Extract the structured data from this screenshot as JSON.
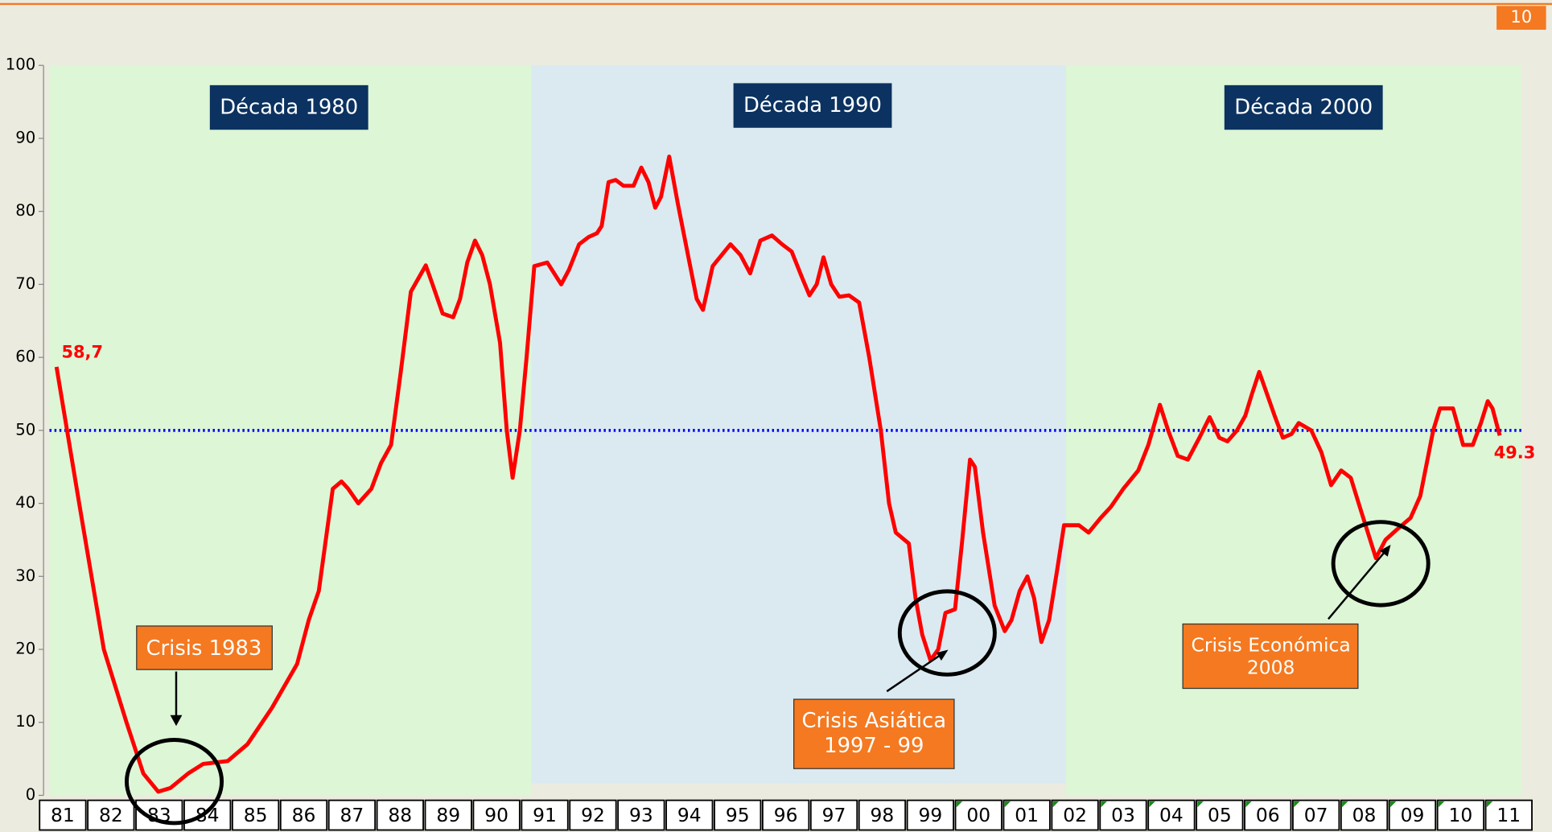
{
  "page_number": "10",
  "chart_data": {
    "type": "line",
    "ylim": [
      0,
      100
    ],
    "yticks": [
      0,
      10,
      20,
      30,
      40,
      50,
      60,
      70,
      80,
      90,
      100
    ],
    "xlim": [
      1981,
      2012
    ],
    "categories": [
      "81",
      "82",
      "83",
      "84",
      "85",
      "86",
      "87",
      "88",
      "89",
      "90",
      "91",
      "92",
      "93",
      "94",
      "95",
      "96",
      "97",
      "98",
      "99",
      "00",
      "01",
      "02",
      "03",
      "04",
      "05",
      "06",
      "07",
      "08",
      "09",
      "10",
      "11"
    ],
    "decades": [
      "Década 1980",
      "Década 1990",
      "Década 2000"
    ],
    "annotations": [
      "Crisis 1983",
      "Crisis Asiática\n1997 - 99",
      "Crisis Económica\n2008"
    ],
    "reference_line": {
      "value": 50,
      "color": "#0000ff"
    },
    "series": [
      {
        "color": "#ff0000",
        "x": [
          1981.27,
          1981.74,
          1982.25,
          1982.72,
          1983.07,
          1983.38,
          1983.63,
          1984.0,
          1984.31,
          1984.82,
          1985.23,
          1985.74,
          1986.26,
          1986.5,
          1986.71,
          1987.0,
          1987.18,
          1987.32,
          1987.53,
          1987.8,
          1988.0,
          1988.21,
          1988.41,
          1988.62,
          1988.93,
          1989.07,
          1989.28,
          1989.5,
          1989.64,
          1989.79,
          1989.95,
          1990.1,
          1990.26,
          1990.47,
          1990.61,
          1990.73,
          1990.88,
          1991.02,
          1991.18,
          1991.45,
          1991.74,
          1991.9,
          1992.11,
          1992.31,
          1992.48,
          1992.58,
          1992.72,
          1992.87,
          1993.03,
          1993.24,
          1993.4,
          1993.55,
          1993.69,
          1993.81,
          1993.98,
          1994.16,
          1994.37,
          1994.55,
          1994.68,
          1994.88,
          1995.25,
          1995.46,
          1995.66,
          1995.87,
          1996.11,
          1996.32,
          1996.52,
          1996.73,
          1996.89,
          1997.04,
          1997.18,
          1997.34,
          1997.51,
          1997.71,
          1997.92,
          1998.13,
          1998.37,
          1998.54,
          1998.68,
          1998.95,
          1999.09,
          1999.23,
          1999.4,
          1999.56,
          1999.71,
          1999.91,
          2000.06,
          2000.22,
          2000.32,
          2000.49,
          2000.73,
          2000.94,
          2001.08,
          2001.25,
          2001.41,
          2001.55,
          2001.7,
          2001.86,
          2002.03,
          2002.17,
          2002.48,
          2002.68,
          2002.93,
          2003.14,
          2003.4,
          2003.71,
          2003.92,
          2004.16,
          2004.33,
          2004.53,
          2004.74,
          2004.98,
          2005.19,
          2005.39,
          2005.56,
          2005.76,
          2005.93,
          2006.07,
          2006.22,
          2006.38,
          2006.54,
          2006.71,
          2006.89,
          2007.04,
          2007.3,
          2007.51,
          2007.71,
          2007.92,
          2008.12,
          2008.33,
          2008.64,
          2008.84,
          2009.09,
          2009.36,
          2009.56,
          2009.83,
          2009.97,
          2010.24,
          2010.45,
          2010.65,
          2010.82,
          2010.96,
          2011.06,
          2011.21
        ],
        "values": [
          58.7,
          40,
          20,
          10,
          3,
          0.5,
          1,
          3,
          4.3,
          4.7,
          7,
          12,
          18,
          24,
          28,
          42,
          43,
          42,
          40,
          42,
          45.5,
          48,
          58,
          69,
          72.6,
          70,
          66,
          65.5,
          68,
          73,
          76,
          74,
          70,
          62,
          50,
          43.5,
          50,
          60,
          72.5,
          73,
          70,
          72,
          75.5,
          76.5,
          77,
          78,
          84,
          84.3,
          83.5,
          83.5,
          86,
          84,
          80.5,
          82,
          87.5,
          81,
          74,
          68,
          66.5,
          72.5,
          75.5,
          74,
          71.5,
          76,
          76.7,
          75.5,
          74.5,
          71,
          68.5,
          70,
          73.7,
          70,
          68.3,
          68.5,
          67.5,
          60,
          50,
          40,
          36,
          34.5,
          27,
          22,
          18.5,
          20,
          25,
          25.5,
          35,
          46,
          45,
          36,
          26,
          22.5,
          24,
          28,
          30,
          27,
          21,
          24,
          31,
          37,
          37,
          36,
          38,
          39.5,
          42,
          44.5,
          48,
          53.5,
          50,
          46.5,
          46,
          49,
          51.8,
          49,
          48.5,
          50,
          52,
          55,
          58,
          55,
          52,
          49,
          49.5,
          51,
          50,
          47,
          42.5,
          44.5,
          43.5,
          39,
          32.5,
          35,
          36.5,
          38,
          41,
          50,
          53,
          53,
          48,
          48,
          51,
          54,
          53,
          49.3
        ]
      }
    ],
    "point_labels": [
      {
        "x": 1981.27,
        "value": 58.7,
        "label": "58,7"
      },
      {
        "x": 2011.21,
        "value": 49.3,
        "label": "49.3"
      }
    ]
  }
}
